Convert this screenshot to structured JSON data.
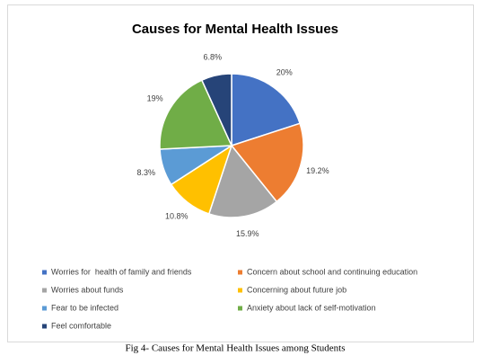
{
  "chart_data": {
    "type": "pie",
    "title": "Causes for Mental Health Issues",
    "categories": [
      "Worries for  health of family and friends",
      "Concern about school and continuing education",
      "Worries about funds",
      "Concerning about future job",
      "Fear to be infected",
      "Anxiety about lack of self-motivation",
      "Feel comfortable"
    ],
    "values": [
      20,
      19.2,
      15.9,
      10.8,
      8.3,
      19,
      6.8
    ],
    "value_labels": [
      "20%",
      "19.2%",
      "15.9%",
      "10.8%",
      "8.3%",
      "19%",
      "6.8%"
    ],
    "colors": [
      "#4472c4",
      "#ed7d31",
      "#a5a5a5",
      "#ffc000",
      "#5b9bd5",
      "#70ad47",
      "#264478"
    ],
    "legend": "bottom"
  },
  "caption": "Fig 4- Causes for Mental Health Issues among Students"
}
